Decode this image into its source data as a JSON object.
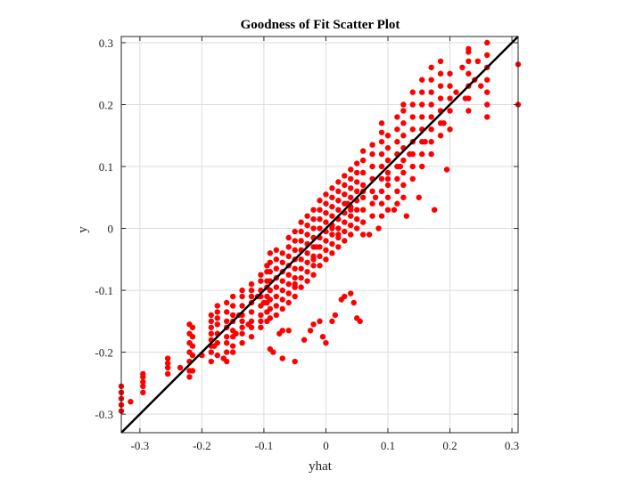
{
  "chart_data": {
    "type": "scatter",
    "title": "Goodness of Fit Scatter Plot",
    "xlabel": "yhat",
    "ylabel": "y",
    "xlim": [
      -0.33,
      0.31
    ],
    "ylim": [
      -0.33,
      0.31
    ],
    "xticks": [
      -0.3,
      -0.2,
      -0.1,
      0,
      0.1,
      0.2,
      0.3
    ],
    "xtick_labels": [
      "-0.3",
      "-0.2",
      "-0.1",
      "0",
      "0.1",
      "0.2",
      "0.3"
    ],
    "yticks": [
      -0.3,
      -0.2,
      -0.1,
      0,
      0.1,
      0.2,
      0.3
    ],
    "ytick_labels": [
      "-0.3",
      "-0.2",
      "-0.1",
      "0",
      "0.1",
      "0.2",
      "0.3"
    ],
    "grid": true,
    "marker_color": "#ff0000",
    "line_color": "#000000",
    "reference_line": {
      "x": [
        -0.33,
        0.31
      ],
      "y": [
        -0.33,
        0.31
      ]
    },
    "clusters": [
      {
        "x": -0.33,
        "y": [
          -0.295,
          -0.285,
          -0.275,
          -0.265,
          -0.255
        ]
      },
      {
        "x": -0.295,
        "y": [
          -0.265,
          -0.255,
          -0.248,
          -0.24,
          -0.235
        ]
      },
      {
        "x": -0.255,
        "y": [
          -0.235,
          -0.225,
          -0.218,
          -0.21
        ]
      },
      {
        "x": -0.22,
        "y": [
          -0.24,
          -0.23,
          -0.215,
          -0.2,
          -0.185,
          -0.17,
          -0.155
        ]
      },
      {
        "x": -0.215,
        "y": [
          -0.23,
          -0.205,
          -0.19,
          -0.175,
          -0.16
        ]
      },
      {
        "x": -0.185,
        "y": [
          -0.215,
          -0.2,
          -0.19,
          -0.18,
          -0.17,
          -0.16,
          -0.15,
          -0.14
        ]
      },
      {
        "x": -0.175,
        "y": [
          -0.205,
          -0.185,
          -0.17,
          -0.155,
          -0.145,
          -0.135,
          -0.125
        ]
      },
      {
        "x": -0.16,
        "y": [
          -0.215,
          -0.2,
          -0.185,
          -0.175,
          -0.16,
          -0.15,
          -0.135,
          -0.12
        ]
      },
      {
        "x": -0.15,
        "y": [
          -0.2,
          -0.19,
          -0.175,
          -0.165,
          -0.15,
          -0.14,
          -0.125,
          -0.11
        ]
      },
      {
        "x": -0.135,
        "y": [
          -0.185,
          -0.17,
          -0.16,
          -0.15,
          -0.14,
          -0.125,
          -0.11,
          -0.1
        ]
      },
      {
        "x": -0.12,
        "y": [
          -0.175,
          -0.16,
          -0.15,
          -0.135,
          -0.12,
          -0.11,
          -0.1,
          -0.09
        ]
      },
      {
        "x": -0.105,
        "y": [
          -0.16,
          -0.15,
          -0.14,
          -0.125,
          -0.11,
          -0.1,
          -0.085,
          -0.075
        ]
      },
      {
        "x": -0.095,
        "y": [
          -0.15,
          -0.135,
          -0.12,
          -0.11,
          -0.095,
          -0.085,
          -0.07,
          -0.06
        ]
      },
      {
        "x": -0.09,
        "y": [
          -0.145,
          -0.13,
          -0.115,
          -0.1,
          -0.085,
          -0.07,
          -0.055,
          -0.04
        ]
      },
      {
        "x": -0.08,
        "y": [
          -0.14,
          -0.125,
          -0.11,
          -0.095,
          -0.08,
          -0.065,
          -0.05,
          -0.035
        ]
      },
      {
        "x": -0.07,
        "y": [
          -0.13,
          -0.115,
          -0.1,
          -0.085,
          -0.07,
          -0.055,
          -0.04
        ]
      },
      {
        "x": -0.06,
        "y": [
          -0.12,
          -0.105,
          -0.09,
          -0.075,
          -0.06,
          -0.045,
          -0.03,
          -0.015
        ]
      },
      {
        "x": -0.05,
        "y": [
          -0.11,
          -0.095,
          -0.08,
          -0.065,
          -0.05,
          -0.035,
          -0.02,
          -0.005
        ]
      },
      {
        "x": -0.04,
        "y": [
          -0.095,
          -0.08,
          -0.065,
          -0.05,
          -0.035,
          -0.02,
          -0.005,
          0.01
        ]
      },
      {
        "x": -0.03,
        "y": [
          -0.085,
          -0.07,
          -0.055,
          -0.04,
          -0.025,
          -0.01,
          0.005,
          0.02
        ]
      },
      {
        "x": -0.02,
        "y": [
          -0.075,
          -0.06,
          -0.045,
          -0.03,
          -0.015,
          0.0,
          0.015,
          0.03
        ]
      },
      {
        "x": -0.01,
        "y": [
          -0.06,
          -0.045,
          -0.03,
          -0.015,
          0.0,
          0.015,
          0.03,
          0.045
        ]
      },
      {
        "x": 0.0,
        "y": [
          -0.05,
          -0.035,
          -0.02,
          -0.005,
          0.01,
          0.025,
          0.04,
          0.055
        ]
      },
      {
        "x": 0.01,
        "y": [
          -0.04,
          -0.025,
          -0.01,
          0.005,
          0.02,
          0.035,
          0.05,
          0.065
        ]
      },
      {
        "x": 0.02,
        "y": [
          -0.03,
          -0.015,
          0.0,
          0.015,
          0.03,
          0.045,
          0.06,
          0.075
        ]
      },
      {
        "x": 0.03,
        "y": [
          -0.02,
          -0.005,
          0.01,
          0.025,
          0.04,
          0.055,
          0.07,
          0.085
        ]
      },
      {
        "x": 0.04,
        "y": [
          -0.01,
          0.005,
          0.02,
          0.035,
          0.05,
          0.065,
          0.08,
          0.095
        ]
      },
      {
        "x": 0.05,
        "y": [
          0.0,
          0.015,
          0.03,
          0.045,
          0.06,
          0.075,
          0.09,
          0.105
        ]
      },
      {
        "x": 0.06,
        "y": [
          -0.01,
          0.01,
          0.03,
          0.05,
          0.07,
          0.09,
          0.11,
          0.125
        ]
      },
      {
        "x": 0.075,
        "y": [
          0.02,
          0.04,
          0.06,
          0.08,
          0.1,
          0.12,
          0.135
        ]
      },
      {
        "x": 0.09,
        "y": [
          0.02,
          0.04,
          0.06,
          0.08,
          0.1,
          0.12,
          0.14,
          0.155,
          0.17
        ]
      },
      {
        "x": 0.1,
        "y": [
          0.03,
          0.05,
          0.07,
          0.09,
          0.11,
          0.13,
          0.15
        ]
      },
      {
        "x": 0.115,
        "y": [
          0.04,
          0.06,
          0.08,
          0.1,
          0.12,
          0.14,
          0.16,
          0.18
        ]
      },
      {
        "x": 0.125,
        "y": [
          0.05,
          0.07,
          0.09,
          0.11,
          0.13,
          0.15,
          0.17,
          0.19,
          0.2
        ]
      },
      {
        "x": 0.14,
        "y": [
          0.08,
          0.1,
          0.12,
          0.14,
          0.16,
          0.18,
          0.2,
          0.22
        ]
      },
      {
        "x": 0.155,
        "y": [
          0.1,
          0.12,
          0.14,
          0.16,
          0.18,
          0.2,
          0.22,
          0.24
        ]
      },
      {
        "x": 0.17,
        "y": [
          0.12,
          0.14,
          0.16,
          0.18,
          0.2,
          0.22,
          0.24,
          0.26
        ]
      },
      {
        "x": 0.185,
        "y": [
          0.15,
          0.17,
          0.19,
          0.21,
          0.23,
          0.25,
          0.27
        ]
      },
      {
        "x": 0.2,
        "y": [
          0.16,
          0.19,
          0.21,
          0.23,
          0.25
        ]
      },
      {
        "x": 0.23,
        "y": [
          0.19,
          0.21,
          0.23,
          0.25,
          0.27,
          0.29
        ]
      },
      {
        "x": 0.26,
        "y": [
          0.18,
          0.2,
          0.22,
          0.24,
          0.26,
          0.28,
          0.3
        ]
      },
      {
        "x": 0.31,
        "y": [
          0.2,
          0.265
        ]
      }
    ],
    "points": [
      [
        -0.315,
        -0.28
      ],
      [
        -0.235,
        -0.225
      ],
      [
        -0.2,
        -0.205
      ],
      [
        -0.145,
        -0.17
      ],
      [
        -0.125,
        -0.155
      ],
      [
        -0.1,
        -0.12
      ],
      [
        -0.07,
        -0.165
      ],
      [
        -0.05,
        -0.09
      ],
      [
        -0.015,
        -0.03
      ],
      [
        0.02,
        -0.01
      ],
      [
        0.04,
        0.03
      ],
      [
        0.07,
        -0.01
      ],
      [
        0.085,
        0.0
      ],
      [
        0.11,
        0.03
      ],
      [
        0.13,
        0.02
      ],
      [
        0.15,
        0.05
      ],
      [
        0.175,
        0.03
      ],
      [
        0.195,
        0.095
      ],
      [
        0.22,
        0.26
      ],
      [
        0.23,
        0.285
      ],
      [
        0.245,
        0.27
      ],
      [
        0.21,
        0.22
      ],
      [
        0.25,
        0.23
      ],
      [
        -0.09,
        -0.195
      ],
      [
        -0.085,
        -0.2
      ],
      [
        -0.07,
        -0.21
      ],
      [
        -0.05,
        -0.215
      ],
      [
        -0.035,
        -0.18
      ],
      [
        -0.025,
        -0.165
      ],
      [
        -0.02,
        -0.155
      ],
      [
        -0.005,
        -0.175
      ],
      [
        0.0,
        -0.185
      ],
      [
        0.01,
        -0.15
      ],
      [
        0.015,
        -0.14
      ],
      [
        0.03,
        -0.11
      ],
      [
        0.04,
        -0.105
      ],
      [
        0.045,
        -0.12
      ],
      [
        0.05,
        -0.145
      ],
      [
        0.055,
        -0.15
      ],
      [
        -0.06,
        -0.165
      ],
      [
        -0.075,
        -0.17
      ],
      [
        0.025,
        -0.115
      ],
      [
        -0.01,
        -0.15
      ],
      [
        -0.165,
        -0.21
      ],
      [
        -0.18,
        -0.19
      ],
      [
        -0.14,
        -0.14
      ],
      [
        -0.11,
        -0.11
      ],
      [
        -0.02,
        -0.05
      ],
      [
        0.01,
        0.0
      ],
      [
        0.035,
        0.04
      ],
      [
        0.06,
        0.06
      ],
      [
        0.08,
        0.05
      ],
      [
        0.1,
        0.08
      ],
      [
        0.12,
        0.1
      ],
      [
        0.135,
        0.12
      ],
      [
        0.16,
        0.14
      ],
      [
        0.19,
        0.17
      ],
      [
        0.225,
        0.21
      ],
      [
        0.24,
        0.24
      ]
    ]
  }
}
